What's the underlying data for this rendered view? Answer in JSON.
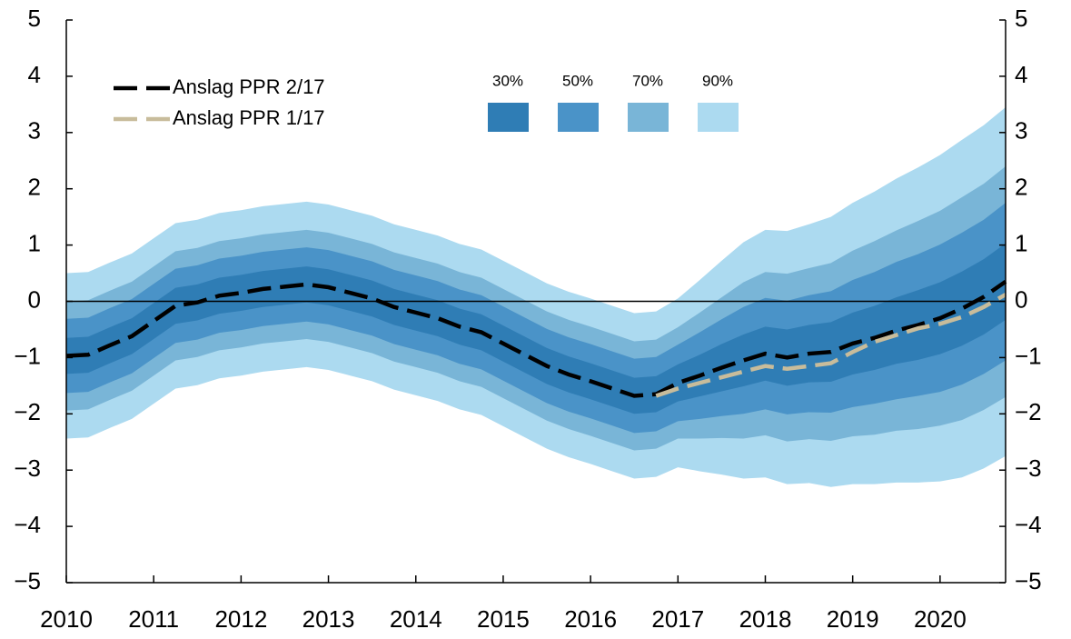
{
  "chart_data": {
    "type": "fan",
    "x": [
      2010,
      2010.25,
      2010.5,
      2010.75,
      2011,
      2011.25,
      2011.5,
      2011.75,
      2012,
      2012.25,
      2012.5,
      2012.75,
      2013,
      2013.25,
      2013.5,
      2013.75,
      2014,
      2014.25,
      2014.5,
      2014.75,
      2015,
      2015.25,
      2015.5,
      2015.75,
      2016,
      2016.25,
      2016.5,
      2016.75,
      2017,
      2017.25,
      2017.5,
      2017.75,
      2018,
      2018.25,
      2018.5,
      2018.75,
      2019,
      2019.25,
      2019.5,
      2019.75,
      2020,
      2020.25,
      2020.5,
      2020.75
    ],
    "xlim": [
      2010,
      2020.75
    ],
    "xticks": [
      2010,
      2011,
      2012,
      2013,
      2014,
      2015,
      2016,
      2017,
      2018,
      2019,
      2020
    ],
    "ylim": [
      -5,
      5
    ],
    "yticks": [
      {
        "value": -5,
        "label": "−5"
      },
      {
        "value": -4,
        "label": "−4"
      },
      {
        "value": -3,
        "label": "−3"
      },
      {
        "value": -2,
        "label": "−2"
      },
      {
        "value": -1,
        "label": "−1"
      },
      0,
      1,
      2,
      3,
      4,
      5
    ],
    "y2lim": [
      -5,
      5
    ],
    "y2ticks": [
      {
        "value": -5,
        "label": "−5"
      },
      {
        "value": -4,
        "label": "−4"
      },
      {
        "value": -3,
        "label": "−3"
      },
      {
        "value": -2,
        "label": "−2"
      },
      {
        "value": -1,
        "label": "−1"
      },
      0,
      1,
      2,
      3,
      4,
      5
    ],
    "bands": [
      {
        "name": "30%",
        "color": "#2f7db5",
        "upper": [
          -0.65,
          -0.63,
          -0.46,
          -0.3,
          -0.03,
          0.24,
          0.3,
          0.42,
          0.47,
          0.54,
          0.58,
          0.62,
          0.57,
          0.47,
          0.37,
          0.22,
          0.12,
          0.02,
          -0.13,
          -0.23,
          -0.43,
          -0.63,
          -0.83,
          -0.98,
          -1.1,
          -1.23,
          -1.36,
          -1.33,
          -1.12,
          -0.95,
          -0.76,
          -0.59,
          -0.45,
          -0.5,
          -0.42,
          -0.37,
          -0.2,
          -0.08,
          0.07,
          0.2,
          0.34,
          0.53,
          0.75,
          1.03
        ],
        "lower": [
          -1.29,
          -1.27,
          -1.1,
          -0.94,
          -0.67,
          -0.4,
          -0.34,
          -0.22,
          -0.17,
          -0.1,
          -0.06,
          -0.02,
          -0.07,
          -0.17,
          -0.27,
          -0.42,
          -0.52,
          -0.62,
          -0.77,
          -0.87,
          -1.07,
          -1.27,
          -1.47,
          -1.62,
          -1.74,
          -1.87,
          -2.0,
          -1.97,
          -1.78,
          -1.69,
          -1.6,
          -1.51,
          -1.41,
          -1.5,
          -1.44,
          -1.43,
          -1.3,
          -1.22,
          -1.11,
          -1.04,
          -0.94,
          -0.79,
          -0.59,
          -0.33
        ]
      },
      {
        "name": "50%",
        "color": "#4a93c8",
        "upper": [
          -0.31,
          -0.29,
          -0.12,
          0.04,
          0.31,
          0.58,
          0.64,
          0.76,
          0.81,
          0.88,
          0.92,
          0.96,
          0.91,
          0.81,
          0.71,
          0.56,
          0.46,
          0.36,
          0.21,
          0.11,
          -0.09,
          -0.29,
          -0.49,
          -0.64,
          -0.76,
          -0.89,
          -1.02,
          -0.99,
          -0.77,
          -0.55,
          -0.32,
          -0.1,
          0.06,
          0.01,
          0.11,
          0.18,
          0.38,
          0.52,
          0.7,
          0.84,
          1.01,
          1.22,
          1.45,
          1.75
        ],
        "lower": [
          -1.63,
          -1.61,
          -1.44,
          -1.28,
          -1.01,
          -0.74,
          -0.68,
          -0.56,
          -0.51,
          -0.44,
          -0.4,
          -0.36,
          -0.41,
          -0.51,
          -0.61,
          -0.76,
          -0.86,
          -0.96,
          -1.11,
          -1.21,
          -1.41,
          -1.61,
          -1.81,
          -1.96,
          -2.08,
          -2.21,
          -2.34,
          -2.31,
          -2.13,
          -2.09,
          -2.04,
          -2.0,
          -1.92,
          -2.01,
          -1.97,
          -1.98,
          -1.88,
          -1.82,
          -1.74,
          -1.68,
          -1.61,
          -1.48,
          -1.29,
          -1.05
        ]
      },
      {
        "name": "70%",
        "color": "#79b5d7",
        "upper": [
          0.0,
          0.02,
          0.19,
          0.35,
          0.62,
          0.89,
          0.95,
          1.07,
          1.12,
          1.19,
          1.23,
          1.27,
          1.22,
          1.12,
          1.02,
          0.87,
          0.77,
          0.67,
          0.52,
          0.42,
          0.22,
          0.02,
          -0.18,
          -0.33,
          -0.45,
          -0.58,
          -0.71,
          -0.68,
          -0.46,
          -0.2,
          0.07,
          0.34,
          0.52,
          0.49,
          0.59,
          0.68,
          0.9,
          1.07,
          1.26,
          1.43,
          1.61,
          1.85,
          2.09,
          2.4
        ],
        "lower": [
          -1.94,
          -1.92,
          -1.75,
          -1.59,
          -1.32,
          -1.05,
          -0.99,
          -0.87,
          -0.82,
          -0.75,
          -0.71,
          -0.67,
          -0.72,
          -0.82,
          -0.92,
          -1.07,
          -1.17,
          -1.27,
          -1.42,
          -1.52,
          -1.72,
          -1.92,
          -2.12,
          -2.27,
          -2.39,
          -2.52,
          -2.65,
          -2.62,
          -2.44,
          -2.44,
          -2.43,
          -2.44,
          -2.38,
          -2.49,
          -2.45,
          -2.48,
          -2.4,
          -2.37,
          -2.3,
          -2.27,
          -2.21,
          -2.11,
          -1.93,
          -1.7
        ]
      },
      {
        "name": "90%",
        "color": "#acdaf0",
        "upper": [
          0.5,
          0.52,
          0.69,
          0.85,
          1.12,
          1.39,
          1.45,
          1.57,
          1.62,
          1.69,
          1.73,
          1.77,
          1.72,
          1.62,
          1.52,
          1.37,
          1.27,
          1.17,
          1.02,
          0.92,
          0.72,
          0.52,
          0.32,
          0.17,
          0.05,
          -0.08,
          -0.21,
          -0.18,
          0.05,
          0.38,
          0.72,
          1.05,
          1.27,
          1.25,
          1.37,
          1.5,
          1.75,
          1.95,
          2.18,
          2.38,
          2.6,
          2.87,
          3.13,
          3.45
        ],
        "lower": [
          -2.44,
          -2.42,
          -2.25,
          -2.09,
          -1.82,
          -1.55,
          -1.49,
          -1.37,
          -1.32,
          -1.25,
          -1.21,
          -1.17,
          -1.22,
          -1.32,
          -1.42,
          -1.57,
          -1.67,
          -1.77,
          -1.92,
          -2.02,
          -2.22,
          -2.42,
          -2.62,
          -2.77,
          -2.89,
          -3.02,
          -3.15,
          -3.12,
          -2.95,
          -3.02,
          -3.08,
          -3.15,
          -3.13,
          -3.25,
          -3.23,
          -3.3,
          -3.25,
          -3.25,
          -3.22,
          -3.22,
          -3.2,
          -3.13,
          -2.97,
          -2.75
        ]
      }
    ],
    "series": [
      {
        "name": "Anslag PPR 2/17",
        "color": "#000000",
        "values": [
          -0.97,
          -0.95,
          -0.78,
          -0.62,
          -0.35,
          -0.08,
          -0.02,
          0.1,
          0.15,
          0.22,
          0.26,
          0.3,
          0.25,
          0.15,
          0.05,
          -0.1,
          -0.2,
          -0.3,
          -0.45,
          -0.55,
          -0.75,
          -0.95,
          -1.15,
          -1.3,
          -1.42,
          -1.55,
          -1.68,
          -1.65,
          -1.45,
          -1.32,
          -1.18,
          -1.05,
          -0.93,
          -1.0,
          -0.93,
          -0.9,
          -0.75,
          -0.65,
          -0.52,
          -0.42,
          -0.3,
          -0.13,
          0.08,
          0.35
        ]
      },
      {
        "name": "Anslag PPR 1/17",
        "color": "#c8bc9b",
        "values": [
          null,
          null,
          null,
          null,
          null,
          null,
          null,
          null,
          null,
          null,
          null,
          null,
          null,
          null,
          null,
          null,
          null,
          null,
          null,
          null,
          null,
          null,
          null,
          null,
          null,
          null,
          null,
          -1.68,
          -1.55,
          -1.45,
          -1.35,
          -1.25,
          -1.15,
          -1.2,
          -1.15,
          -1.1,
          -0.9,
          -0.72,
          -0.6,
          -0.48,
          -0.4,
          -0.28,
          -0.1,
          0.12
        ]
      }
    ]
  }
}
